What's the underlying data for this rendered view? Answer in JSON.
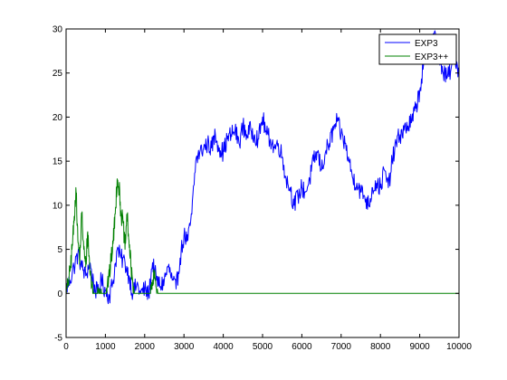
{
  "chart_data": {
    "type": "line",
    "title": "",
    "xlabel": "",
    "ylabel": "",
    "xlim": [
      0,
      10000
    ],
    "ylim": [
      -5,
      30
    ],
    "x_ticks": [
      0,
      1000,
      2000,
      3000,
      4000,
      5000,
      6000,
      7000,
      8000,
      9000,
      10000
    ],
    "x_tick_labels": [
      "0",
      "1000",
      "2000",
      "3000",
      "4000",
      "5000",
      "6000",
      "7000",
      "8000",
      "9000",
      "10000"
    ],
    "y_ticks": [
      -5,
      0,
      5,
      10,
      15,
      20,
      25,
      30
    ],
    "y_tick_labels": [
      "-5",
      "0",
      "5",
      "10",
      "15",
      "20",
      "25",
      "30"
    ],
    "grid": false,
    "legend": {
      "position": "top-right"
    },
    "series": [
      {
        "name": "EXP3",
        "color": "#0000ff",
        "x": [
          0,
          100,
          200,
          300,
          400,
          500,
          600,
          700,
          800,
          900,
          1000,
          1100,
          1200,
          1300,
          1400,
          1500,
          1600,
          1700,
          1800,
          1900,
          2000,
          2100,
          2200,
          2300,
          2400,
          2500,
          2600,
          2700,
          2800,
          2900,
          3000,
          3100,
          3200,
          3300,
          3400,
          3500,
          3600,
          3700,
          3800,
          3900,
          4000,
          4100,
          4200,
          4300,
          4400,
          4500,
          4600,
          4700,
          4800,
          4900,
          5000,
          5100,
          5200,
          5300,
          5400,
          5500,
          5600,
          5700,
          5800,
          5900,
          6000,
          6100,
          6200,
          6300,
          6400,
          6500,
          6600,
          6700,
          6800,
          6900,
          7000,
          7100,
          7200,
          7300,
          7400,
          7500,
          7600,
          7700,
          7800,
          7900,
          8000,
          8100,
          8200,
          8300,
          8400,
          8500,
          8600,
          8700,
          8800,
          8900,
          9000,
          9100,
          9200,
          9300,
          9400,
          9500,
          9600,
          9700,
          9800,
          9900,
          10000
        ],
        "y": [
          0.5,
          1.5,
          3,
          4.5,
          3,
          2,
          3.5,
          1,
          0,
          1.5,
          0.3,
          -0.3,
          1.5,
          5,
          4,
          3.5,
          2,
          0,
          1,
          0,
          0.5,
          -0.2,
          3.5,
          1.5,
          0.8,
          1.5,
          3,
          1.5,
          0.5,
          4,
          6.5,
          6,
          9,
          15,
          16,
          16.5,
          17,
          16.5,
          18,
          16.5,
          16,
          17.5,
          18,
          18.5,
          17,
          19,
          18,
          18.5,
          18,
          17.5,
          20,
          18,
          17.5,
          16.5,
          17,
          15.5,
          13,
          12,
          10,
          11,
          12,
          11.5,
          13,
          15,
          16,
          14,
          16,
          17,
          18.5,
          19.5,
          18,
          17,
          15,
          13,
          12.5,
          11.5,
          11,
          10,
          12,
          12.5,
          12,
          14,
          12,
          15,
          17,
          18,
          18.5,
          19,
          19.5,
          21,
          23,
          26,
          27,
          28.5,
          29.5,
          27,
          25,
          24.5,
          25.5,
          27,
          25
        ]
      },
      {
        "name": "EXP3++",
        "color": "#008000",
        "x": [
          0,
          50,
          100,
          150,
          200,
          250,
          300,
          350,
          400,
          450,
          500,
          550,
          600,
          650,
          700,
          750,
          800,
          850,
          900,
          950,
          1000,
          1050,
          1100,
          1150,
          1200,
          1250,
          1300,
          1350,
          1400,
          1450,
          1500,
          1550,
          1600,
          1650,
          1700,
          1750,
          1800,
          1850,
          1900,
          1950,
          2000,
          2050,
          2100,
          2150,
          2200,
          2250,
          2300,
          2350,
          2400,
          2450,
          3000,
          4000,
          5000,
          6000,
          7000,
          8000,
          9000,
          10000
        ],
        "y": [
          0,
          1,
          2.5,
          5,
          8,
          12,
          6,
          4,
          9,
          5,
          3,
          7,
          3,
          1,
          0,
          0,
          0,
          0.5,
          0,
          0,
          0,
          1,
          2,
          4,
          6,
          9,
          13,
          12,
          9,
          8,
          5,
          9,
          6,
          3,
          1,
          0,
          0,
          0,
          0,
          0,
          0,
          0,
          0,
          0,
          1,
          2,
          0.5,
          0,
          0,
          0,
          0,
          0,
          0,
          0,
          0,
          0,
          0,
          0
        ]
      }
    ]
  }
}
